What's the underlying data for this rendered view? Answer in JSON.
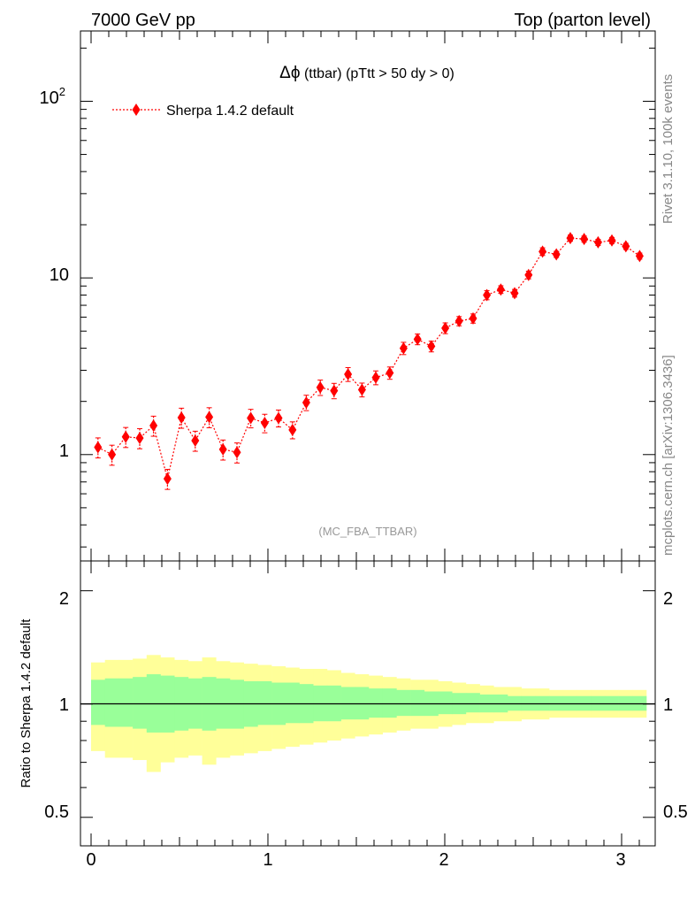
{
  "header": {
    "left": "7000 GeV pp",
    "right": "Top (parton level)"
  },
  "side_labels": {
    "rivet": "Rivet 3.1.10,  100k events",
    "mcplots": "mcplots.cern.ch [arXiv:1306.3436]"
  },
  "chart_data": [
    {
      "type": "line",
      "title_symbol": "Δϕ",
      "title_rest": " (ttbar) (pTtt > 50 dy > 0)",
      "analysis_label": "(MC_FBA_TTBAR)",
      "yscale": "log",
      "xlim": [
        -0.06,
        3.19
      ],
      "ylim": [
        0.25,
        250
      ],
      "y_tick_labels": {
        "1": "1",
        "10": "10",
        "100": "10^2"
      },
      "legend_position": "top-left",
      "series": [
        {
          "name": "Sherpa 1.4.2 default",
          "color": "#ff0000",
          "marker": "diamond",
          "x": [
            0.039,
            0.118,
            0.196,
            0.275,
            0.353,
            0.432,
            0.511,
            0.589,
            0.668,
            0.746,
            0.825,
            0.903,
            0.982,
            1.06,
            1.139,
            1.217,
            1.296,
            1.374,
            1.453,
            1.532,
            1.61,
            1.689,
            1.767,
            1.846,
            1.924,
            2.003,
            2.081,
            2.16,
            2.238,
            2.317,
            2.395,
            2.474,
            2.553,
            2.631,
            2.71,
            2.788,
            2.867,
            2.945,
            3.024,
            3.102
          ],
          "y": [
            1.1,
            1.0,
            1.26,
            1.24,
            1.46,
            0.73,
            1.62,
            1.2,
            1.63,
            1.07,
            1.03,
            1.61,
            1.51,
            1.61,
            1.38,
            1.97,
            2.4,
            2.3,
            2.85,
            2.33,
            2.73,
            2.9,
            4.0,
            4.5,
            4.1,
            5.2,
            5.7,
            5.9,
            8.0,
            8.6,
            8.2,
            10.4,
            14.1,
            13.6,
            16.8,
            16.6,
            15.9,
            16.3,
            15.1,
            13.3
          ],
          "yerr_rel": [
            0.13,
            0.13,
            0.13,
            0.13,
            0.13,
            0.13,
            0.13,
            0.13,
            0.13,
            0.13,
            0.13,
            0.12,
            0.12,
            0.11,
            0.11,
            0.1,
            0.1,
            0.1,
            0.09,
            0.09,
            0.09,
            0.08,
            0.08,
            0.07,
            0.07,
            0.07,
            0.06,
            0.06,
            0.06,
            0.05,
            0.05,
            0.05,
            0.05,
            0.04,
            0.04,
            0.04,
            0.04,
            0.04,
            0.04,
            0.04
          ]
        }
      ]
    },
    {
      "type": "area",
      "ylabel": "Ratio to Sherpa 1.4.2 default",
      "yscale": "log",
      "xlim": [
        -0.06,
        3.19
      ],
      "ylim": [
        0.42,
        2.4
      ],
      "x_tick_labels": [
        "0",
        "1",
        "2",
        "3"
      ],
      "y_tick_labels": [
        "0.5",
        "1",
        "2"
      ],
      "reference_line": 1,
      "band_colors": {
        "inner": "#99ff99",
        "outer": "#ffff99"
      },
      "bin_edges": [
        0.0,
        0.0785,
        0.157,
        0.2355,
        0.314,
        0.3925,
        0.471,
        0.5495,
        0.628,
        0.7065,
        0.785,
        0.8635,
        0.942,
        1.0205,
        1.099,
        1.1775,
        1.256,
        1.3345,
        1.413,
        1.4915,
        1.57,
        1.6485,
        1.727,
        1.8055,
        1.884,
        1.9625,
        2.041,
        2.1195,
        2.198,
        2.2765,
        2.355,
        2.4335,
        2.512,
        2.5905,
        2.669,
        2.7475,
        2.826,
        2.9045,
        2.983,
        3.0615,
        3.14
      ],
      "inner_band": [
        [
          0.88,
          1.16
        ],
        [
          0.87,
          1.17
        ],
        [
          0.87,
          1.17
        ],
        [
          0.86,
          1.18
        ],
        [
          0.84,
          1.2
        ],
        [
          0.84,
          1.19
        ],
        [
          0.85,
          1.18
        ],
        [
          0.86,
          1.17
        ],
        [
          0.85,
          1.18
        ],
        [
          0.86,
          1.17
        ],
        [
          0.86,
          1.16
        ],
        [
          0.87,
          1.15
        ],
        [
          0.88,
          1.15
        ],
        [
          0.88,
          1.14
        ],
        [
          0.89,
          1.14
        ],
        [
          0.89,
          1.13
        ],
        [
          0.9,
          1.12
        ],
        [
          0.9,
          1.12
        ],
        [
          0.91,
          1.11
        ],
        [
          0.91,
          1.11
        ],
        [
          0.92,
          1.1
        ],
        [
          0.92,
          1.1
        ],
        [
          0.93,
          1.09
        ],
        [
          0.93,
          1.09
        ],
        [
          0.93,
          1.08
        ],
        [
          0.94,
          1.08
        ],
        [
          0.94,
          1.07
        ],
        [
          0.95,
          1.07
        ],
        [
          0.95,
          1.06
        ],
        [
          0.95,
          1.06
        ],
        [
          0.96,
          1.05
        ],
        [
          0.96,
          1.05
        ],
        [
          0.96,
          1.05
        ],
        [
          0.96,
          1.05
        ],
        [
          0.96,
          1.05
        ],
        [
          0.96,
          1.05
        ],
        [
          0.96,
          1.05
        ],
        [
          0.96,
          1.05
        ],
        [
          0.96,
          1.05
        ],
        [
          0.96,
          1.05
        ]
      ],
      "outer_band": [
        [
          0.75,
          1.29
        ],
        [
          0.72,
          1.31
        ],
        [
          0.72,
          1.31
        ],
        [
          0.71,
          1.32
        ],
        [
          0.66,
          1.35
        ],
        [
          0.7,
          1.33
        ],
        [
          0.72,
          1.31
        ],
        [
          0.73,
          1.3
        ],
        [
          0.69,
          1.33
        ],
        [
          0.72,
          1.3
        ],
        [
          0.73,
          1.29
        ],
        [
          0.74,
          1.28
        ],
        [
          0.75,
          1.27
        ],
        [
          0.76,
          1.26
        ],
        [
          0.77,
          1.25
        ],
        [
          0.78,
          1.24
        ],
        [
          0.79,
          1.24
        ],
        [
          0.8,
          1.23
        ],
        [
          0.81,
          1.21
        ],
        [
          0.82,
          1.2
        ],
        [
          0.83,
          1.19
        ],
        [
          0.84,
          1.18
        ],
        [
          0.85,
          1.17
        ],
        [
          0.86,
          1.16
        ],
        [
          0.86,
          1.16
        ],
        [
          0.87,
          1.15
        ],
        [
          0.88,
          1.14
        ],
        [
          0.89,
          1.13
        ],
        [
          0.89,
          1.12
        ],
        [
          0.9,
          1.11
        ],
        [
          0.9,
          1.11
        ],
        [
          0.91,
          1.1
        ],
        [
          0.91,
          1.1
        ],
        [
          0.92,
          1.09
        ],
        [
          0.92,
          1.09
        ],
        [
          0.92,
          1.09
        ],
        [
          0.92,
          1.09
        ],
        [
          0.92,
          1.09
        ],
        [
          0.92,
          1.09
        ],
        [
          0.92,
          1.09
        ]
      ]
    }
  ]
}
